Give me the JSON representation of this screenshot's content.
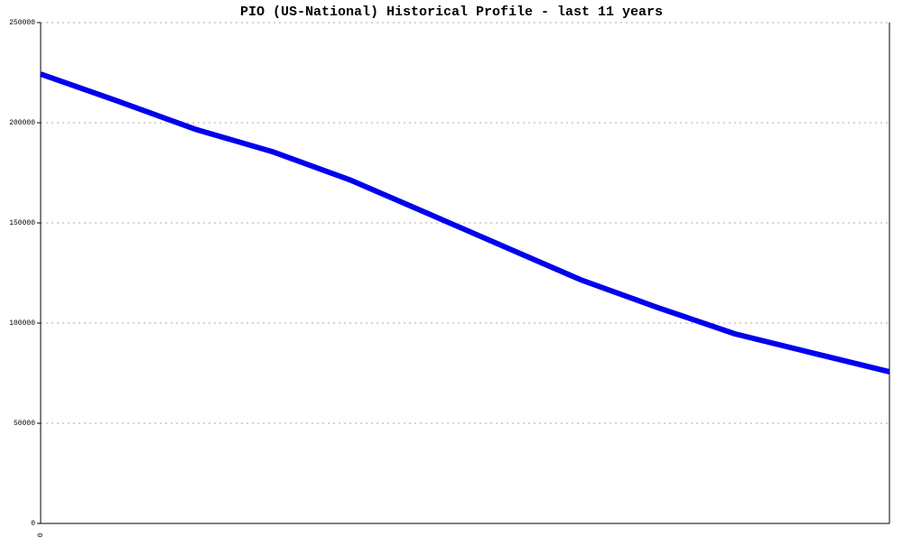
{
  "chart_data": {
    "type": "line",
    "title": "PIO (US-National) Historical Profile - last 11 years",
    "categories": [
      "0",
      null,
      null,
      null,
      null,
      null,
      null,
      null,
      null,
      null,
      null,
      null
    ],
    "series": [
      {
        "name": null,
        "color": "#0000ee",
        "values": [
          224300,
          210800,
          196800,
          185600,
          171600,
          155000,
          138300,
          121600,
          107700,
          94600,
          85100,
          75700
        ]
      }
    ],
    "ylim": [
      0,
      250000
    ],
    "yticks": [
      0,
      50000,
      100000,
      150000,
      200000,
      250000
    ],
    "grid": true
  }
}
